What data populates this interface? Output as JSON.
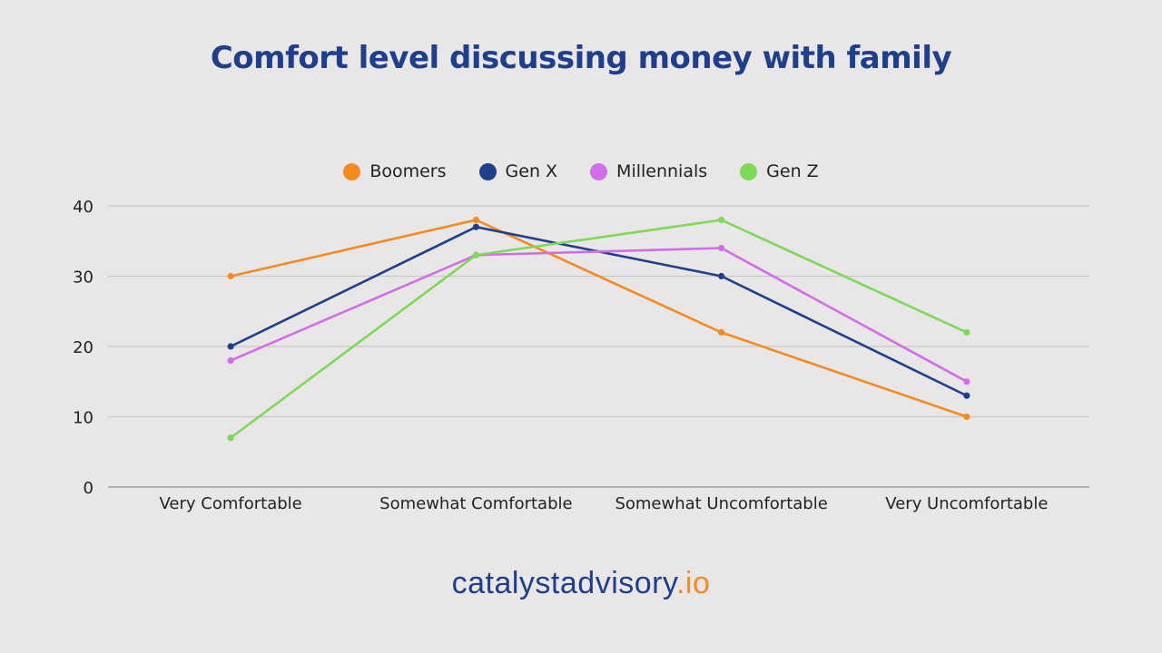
{
  "chart_data": {
    "type": "line",
    "title": "Comfort level discussing money with family",
    "xlabel": "",
    "ylabel": "",
    "categories": [
      "Very Comfortable",
      "Somewhat Comfortable",
      "Somewhat Uncomfortable",
      "Very Uncomfortable"
    ],
    "series": [
      {
        "name": "Boomers",
        "color": "#f58a20",
        "values": [
          30,
          38,
          22,
          10
        ]
      },
      {
        "name": "Gen X",
        "color": "#1f3f8a",
        "values": [
          20,
          37,
          30,
          13
        ]
      },
      {
        "name": "Millennials",
        "color": "#d06ee8",
        "values": [
          18,
          33,
          34,
          15
        ]
      },
      {
        "name": "Gen Z",
        "color": "#7ed957",
        "values": [
          7,
          33,
          38,
          22
        ]
      }
    ],
    "yticks": [
      0,
      10,
      20,
      30,
      40
    ],
    "ylim": [
      0,
      40
    ],
    "grid": true,
    "legend_position": "top"
  },
  "footer": {
    "brand": "catalystadvisory",
    "tld": ".io"
  }
}
